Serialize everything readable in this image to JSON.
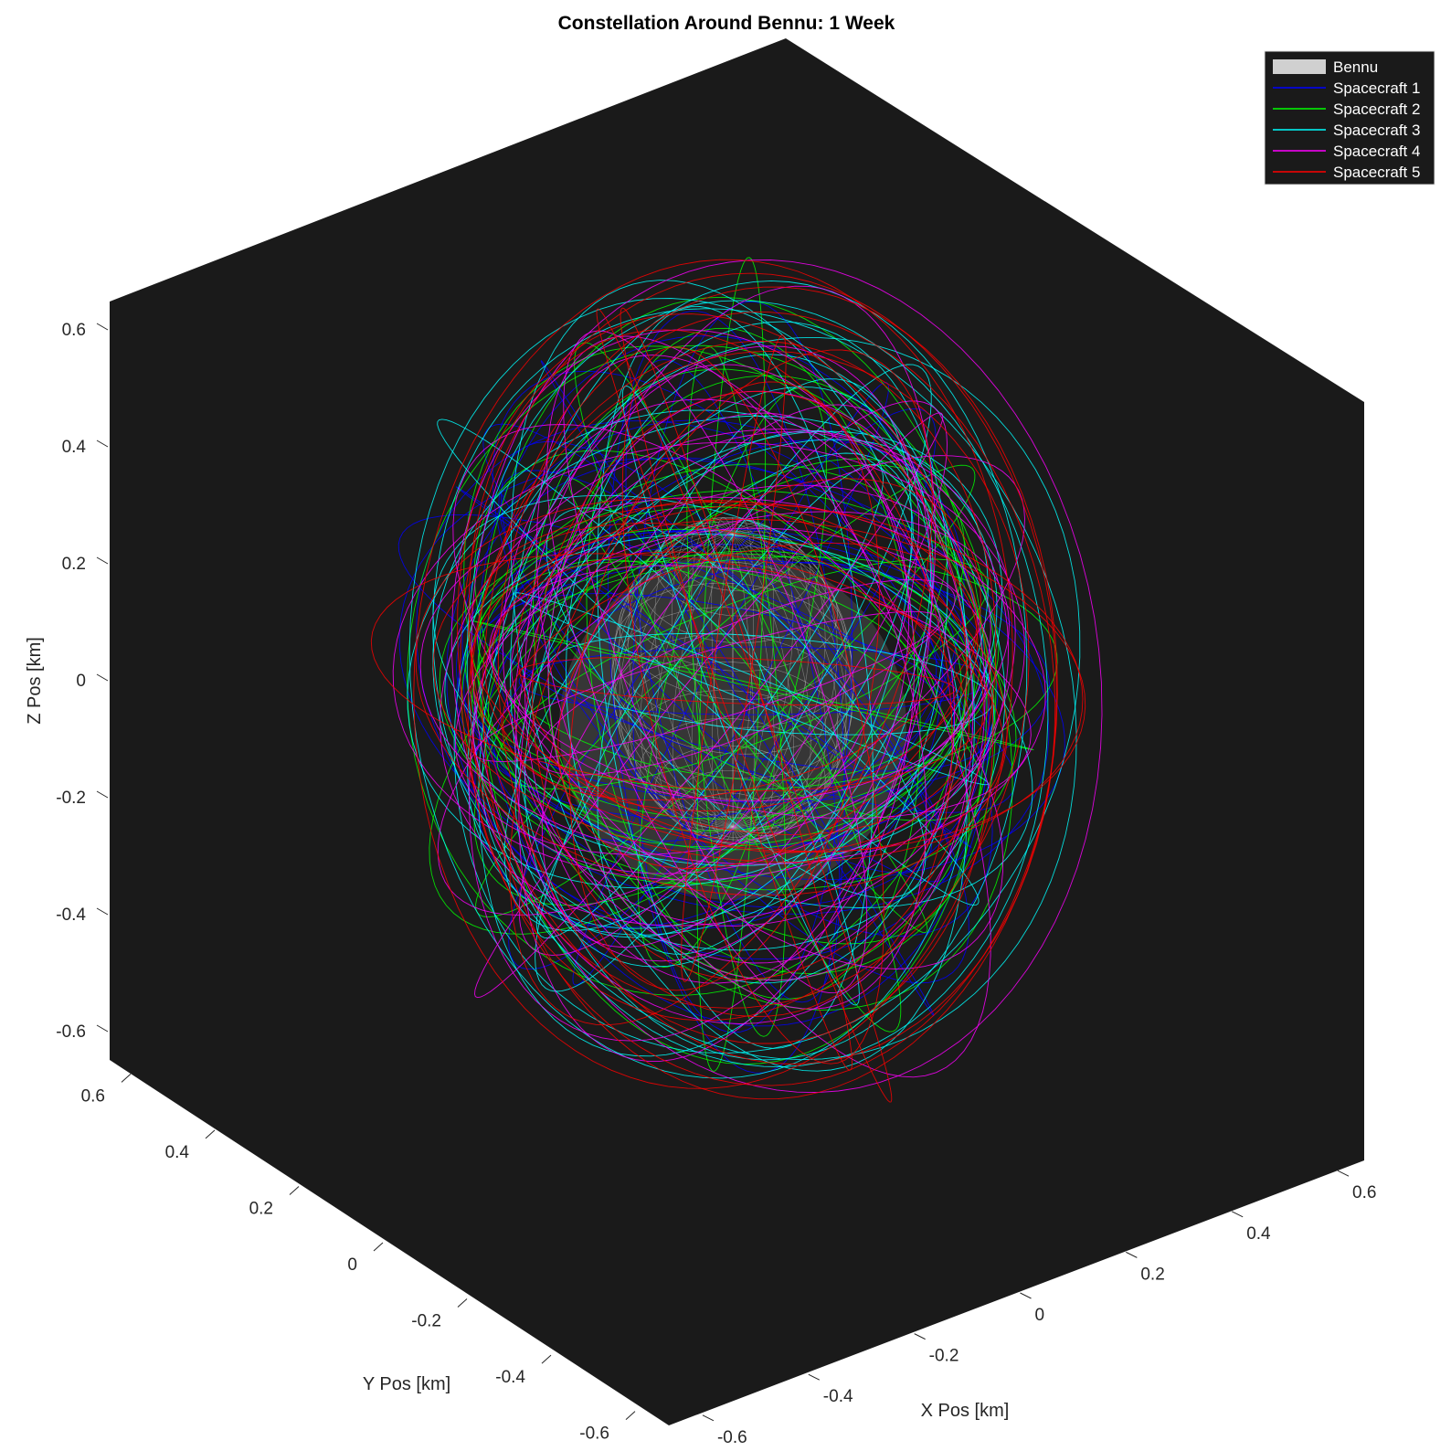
{
  "chart_data": {
    "type": "line",
    "subtype": "3d-trajectory",
    "title": "Constellation Around Bennu: 1 Week",
    "xlabel": "X Pos [km]",
    "ylabel": "Y Pos [km]",
    "zlabel": "Z Pos [km]",
    "xlim": [
      -0.65,
      0.65
    ],
    "ylim": [
      -0.65,
      0.65
    ],
    "zlim": [
      -0.65,
      0.65
    ],
    "x_ticks": [
      "-0.6",
      "-0.4",
      "-0.2",
      "0",
      "0.2",
      "0.4",
      "0.6"
    ],
    "y_ticks": [
      "-0.6",
      "-0.4",
      "-0.2",
      "0",
      "0.2",
      "0.4",
      "0.6"
    ],
    "z_ticks": [
      "-0.6",
      "-0.4",
      "-0.2",
      "0",
      "0.2",
      "0.4",
      "0.6"
    ],
    "axes_background": "#1a1a1a",
    "grid": false,
    "legend_position": "top-right",
    "legend": [
      {
        "name": "Bennu",
        "color": "#d0d0d0",
        "style": "patch"
      },
      {
        "name": "Spacecraft 1",
        "color": "#0000ff",
        "style": "line"
      },
      {
        "name": "Spacecraft 2",
        "color": "#00ff00",
        "style": "line"
      },
      {
        "name": "Spacecraft 3",
        "color": "#00ffff",
        "style": "line"
      },
      {
        "name": "Spacecraft 4",
        "color": "#ff00ff",
        "style": "line"
      },
      {
        "name": "Spacecraft 5",
        "color": "#ff0000",
        "style": "line"
      }
    ],
    "body": {
      "name": "Bennu",
      "center": [
        0,
        0,
        0
      ],
      "radius_km": 0.25,
      "color": "#c8c8c8"
    },
    "series": [
      {
        "name": "Spacecraft 1",
        "color": "#0000ff",
        "orbit_radius_km": [
          0.45,
          0.68
        ]
      },
      {
        "name": "Spacecraft 2",
        "color": "#00ff00",
        "orbit_radius_km": [
          0.45,
          0.68
        ]
      },
      {
        "name": "Spacecraft 3",
        "color": "#00ffff",
        "orbit_radius_km": [
          0.45,
          0.68
        ]
      },
      {
        "name": "Spacecraft 4",
        "color": "#ff00ff",
        "orbit_radius_km": [
          0.45,
          0.68
        ]
      },
      {
        "name": "Spacecraft 5",
        "color": "#ff0000",
        "orbit_radius_km": [
          0.45,
          0.68
        ]
      }
    ]
  }
}
